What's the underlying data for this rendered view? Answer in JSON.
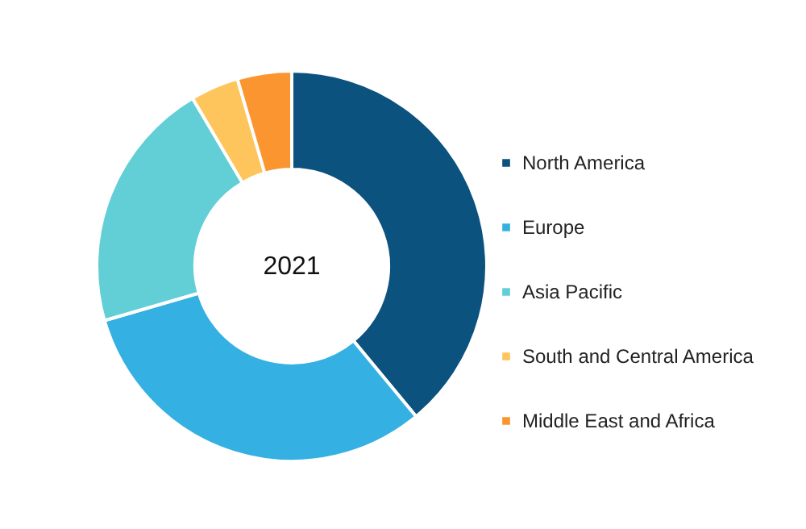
{
  "chart_data": {
    "type": "donut",
    "categories": [
      "North America",
      "Europe",
      "Asia Pacific",
      "South and Central America",
      "Middle East and Africa"
    ],
    "values": [
      39,
      31.5,
      21,
      4,
      4.5
    ],
    "colors": [
      "#0b527e",
      "#35b0e2",
      "#62cfd6",
      "#fdc55b",
      "#fb9530"
    ],
    "annotations": [
      "2021"
    ],
    "legend": "right"
  }
}
